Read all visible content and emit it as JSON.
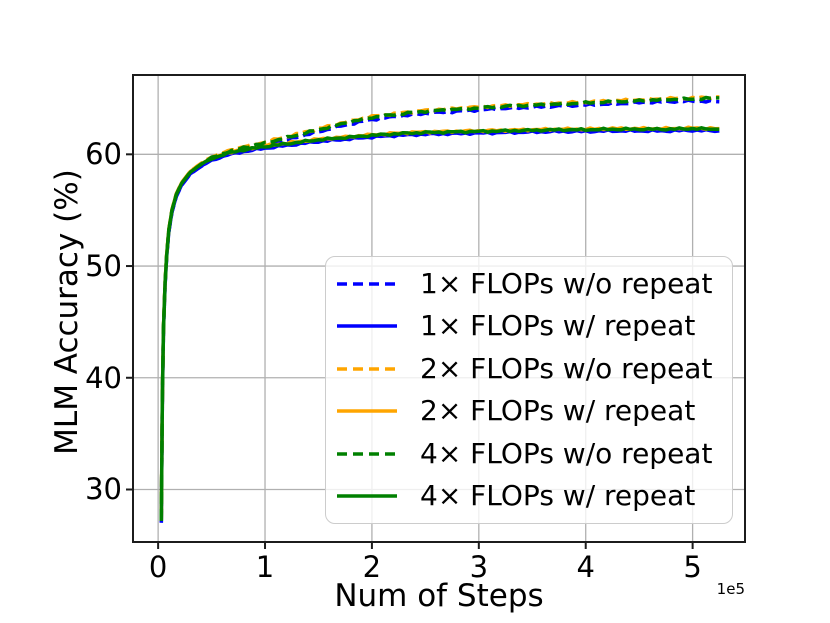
{
  "figure": {
    "background": "#ffffff",
    "spine_color": "#1c1c1c"
  },
  "chart_data": {
    "type": "line",
    "title": "",
    "xlabel": "Num of Steps",
    "ylabel": "MLM Accuracy (%)",
    "x_offset_label": "1e5",
    "x_unit_multiplier": 100000,
    "xlim": [
      -0.235,
      5.49
    ],
    "ylim": [
      25.3,
      67.1
    ],
    "xticks": [
      "0",
      "1",
      "2",
      "3",
      "4",
      "5"
    ],
    "yticks": [
      "30",
      "40",
      "50",
      "60"
    ],
    "grid": true,
    "grid_color": "#b0b0b0",
    "legend_location": "lower right",
    "x": [
      0.03,
      0.035,
      0.04,
      0.05,
      0.065,
      0.08,
      0.1,
      0.13,
      0.17,
      0.22,
      0.3,
      0.4,
      0.5,
      0.65,
      0.8,
      1.0,
      1.25,
      1.5,
      1.75,
      2.0,
      2.25,
      2.5,
      2.75,
      3.0,
      3.25,
      3.5,
      3.75,
      4.0,
      4.25,
      4.5,
      4.75,
      5.0,
      5.25
    ],
    "series": [
      {
        "name": "1× FLOPs w/o repeat",
        "color": "#0000ff",
        "style": "dashed",
        "values": [
          27.02,
          33.32,
          38.32,
          44.32,
          48.32,
          50.82,
          53.02,
          54.82,
          56.22,
          57.22,
          58.22,
          58.92,
          59.52,
          60.02,
          60.42,
          60.82,
          61.42,
          62.02,
          62.62,
          63.12,
          63.42,
          63.67,
          63.82,
          63.97,
          64.12,
          64.22,
          64.32,
          64.42,
          64.52,
          64.62,
          64.72,
          64.77,
          64.7
        ]
      },
      {
        "name": "1× FLOPs w/ repeat",
        "color": "#0000ff",
        "style": "solid",
        "values": [
          27.05,
          33.35,
          38.35,
          44.35,
          48.35,
          50.85,
          53.05,
          54.85,
          56.25,
          57.25,
          58.25,
          58.95,
          59.45,
          59.95,
          60.25,
          60.55,
          60.85,
          61.15,
          61.35,
          61.55,
          61.7,
          61.8,
          61.85,
          61.9,
          61.95,
          62.0,
          62.05,
          62.05,
          62.1,
          62.1,
          62.1,
          62.15,
          62.1
        ]
      },
      {
        "name": "2× FLOPs w/o repeat",
        "color": "#ffa500",
        "style": "dashed",
        "values": [
          27.28,
          33.58,
          38.58,
          44.58,
          48.58,
          51.08,
          53.28,
          55.08,
          56.48,
          57.48,
          58.48,
          59.18,
          59.78,
          60.28,
          60.68,
          61.08,
          61.68,
          62.28,
          62.88,
          63.38,
          63.68,
          63.93,
          64.08,
          64.23,
          64.38,
          64.48,
          64.58,
          64.68,
          64.78,
          64.88,
          64.98,
          65.03,
          65.13
        ]
      },
      {
        "name": "2× FLOPs w/ repeat",
        "color": "#ffa500",
        "style": "solid",
        "values": [
          27.25,
          33.55,
          38.55,
          44.55,
          48.55,
          51.05,
          53.25,
          55.05,
          56.45,
          57.45,
          58.45,
          59.15,
          59.65,
          60.15,
          60.45,
          60.75,
          61.05,
          61.35,
          61.55,
          61.75,
          61.9,
          62.0,
          62.05,
          62.1,
          62.15,
          62.2,
          62.25,
          62.25,
          62.3,
          62.3,
          62.3,
          62.35,
          62.3
        ]
      },
      {
        "name": "4× FLOPs w/o repeat",
        "color": "#008000",
        "style": "dashed",
        "values": [
          27.2,
          33.5,
          38.5,
          44.5,
          48.5,
          51.0,
          53.2,
          55.0,
          56.4,
          57.4,
          58.4,
          59.1,
          59.7,
          60.2,
          60.6,
          61.0,
          61.6,
          62.2,
          62.8,
          63.3,
          63.6,
          63.85,
          64.0,
          64.15,
          64.3,
          64.4,
          64.5,
          64.6,
          64.7,
          64.8,
          64.9,
          64.95,
          65.05
        ]
      },
      {
        "name": "4× FLOPs w/ repeat",
        "color": "#008000",
        "style": "solid",
        "values": [
          27.2,
          33.5,
          38.5,
          44.5,
          48.5,
          51.0,
          53.2,
          55.0,
          56.4,
          57.4,
          58.4,
          59.1,
          59.6,
          60.1,
          60.4,
          60.7,
          61.0,
          61.3,
          61.5,
          61.7,
          61.85,
          61.95,
          62.0,
          62.05,
          62.1,
          62.15,
          62.2,
          62.2,
          62.25,
          62.25,
          62.25,
          62.3,
          62.25
        ]
      }
    ]
  }
}
